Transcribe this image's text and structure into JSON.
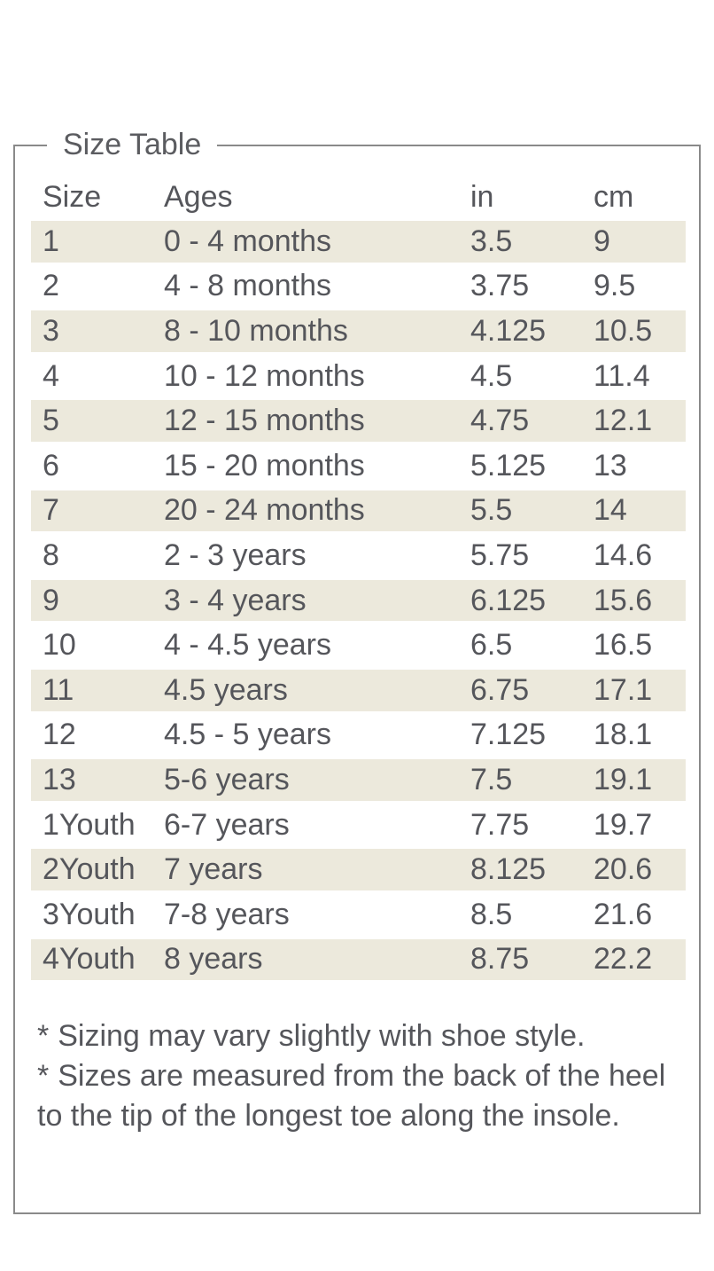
{
  "page": {
    "title": "Size Table"
  },
  "table": {
    "columns": [
      "Size",
      "Ages",
      "in",
      "cm"
    ],
    "rows": [
      {
        "size": "1",
        "ages": "0 - 4 months",
        "in": "3.5",
        "cm": "9"
      },
      {
        "size": "2",
        "ages": "4 - 8 months",
        "in": "3.75",
        "cm": "9.5"
      },
      {
        "size": "3",
        "ages": "8 - 10 months",
        "in": "4.125",
        "cm": "10.5"
      },
      {
        "size": "4",
        "ages": "10 - 12 months",
        "in": "4.5",
        "cm": "11.4"
      },
      {
        "size": "5",
        "ages": "12 - 15 months",
        "in": "4.75",
        "cm": "12.1"
      },
      {
        "size": "6",
        "ages": "15 - 20 months",
        "in": "5.125",
        "cm": "13"
      },
      {
        "size": "7",
        "ages": "20 - 24 months",
        "in": "5.5",
        "cm": "14"
      },
      {
        "size": "8",
        "ages": "2 - 3 years",
        "in": "5.75",
        "cm": "14.6"
      },
      {
        "size": "9",
        "ages": "3 - 4 years",
        "in": "6.125",
        "cm": "15.6"
      },
      {
        "size": "10",
        "ages": "4 - 4.5 years",
        "in": "6.5",
        "cm": "16.5"
      },
      {
        "size": "11",
        "ages": "4.5 years",
        "in": "6.75",
        "cm": "17.1"
      },
      {
        "size": "12",
        "ages": "4.5 - 5 years",
        "in": "7.125",
        "cm": "18.1"
      },
      {
        "size": "13",
        "ages": "5-6 years",
        "in": "7.5",
        "cm": "19.1"
      },
      {
        "size": "1Youth",
        "ages": "6-7 years",
        "in": "7.75",
        "cm": "19.7"
      },
      {
        "size": "2Youth",
        "ages": "7 years",
        "in": "8.125",
        "cm": "20.6"
      },
      {
        "size": "3Youth",
        "ages": "7-8 years",
        "in": "8.5",
        "cm": "21.6"
      },
      {
        "size": "4Youth",
        "ages": "8 years",
        "in": "8.75",
        "cm": "22.2"
      }
    ]
  },
  "notes": {
    "bullet": "*",
    "items": [
      "Sizing may vary slightly with shoe style.",
      "Sizes are measured from the back of the heel to the tip of the longest toe along the insole."
    ]
  },
  "colors": {
    "stripe": "#ECE9DC",
    "border": "#8A8A8A",
    "text": "#55565B",
    "title": "#5B5C60"
  }
}
